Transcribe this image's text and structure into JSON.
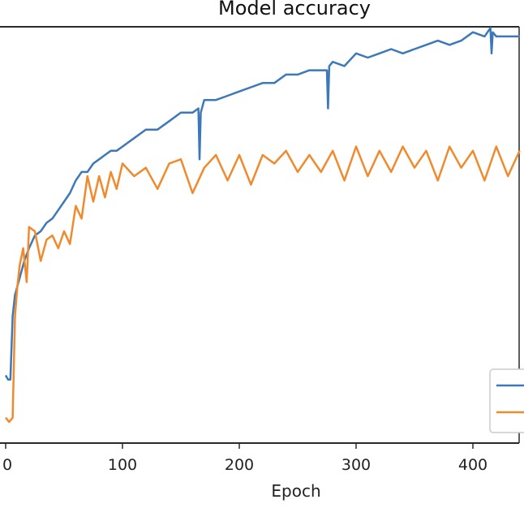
{
  "chart_data": {
    "type": "line",
    "title": "Model accuracy",
    "xlabel": "Epoch",
    "ylabel": "",
    "xlim": [
      -5,
      440
    ],
    "ylim": [
      0.0,
      1.0
    ],
    "x_ticks": [
      0,
      100,
      200,
      300,
      400
    ],
    "x_tick_labels": [
      "0",
      "100",
      "200",
      "300",
      "400"
    ],
    "legend_position": "lower-right",
    "grid": false,
    "series": [
      {
        "color": "#3d78b8",
        "x": [
          0,
          2,
          4,
          6,
          8,
          10,
          13,
          16,
          20,
          25,
          30,
          35,
          40,
          45,
          50,
          55,
          60,
          65,
          70,
          75,
          80,
          85,
          90,
          95,
          100,
          110,
          120,
          130,
          140,
          150,
          160,
          165,
          166,
          167,
          170,
          180,
          190,
          200,
          210,
          220,
          230,
          240,
          250,
          260,
          270,
          275,
          276,
          277,
          280,
          290,
          300,
          310,
          320,
          330,
          340,
          350,
          360,
          370,
          380,
          390,
          400,
          410,
          415,
          416,
          417,
          420,
          430,
          440
        ],
        "y": [
          0.16,
          0.15,
          0.15,
          0.3,
          0.35,
          0.37,
          0.4,
          0.43,
          0.46,
          0.49,
          0.5,
          0.52,
          0.53,
          0.55,
          0.57,
          0.59,
          0.62,
          0.64,
          0.64,
          0.66,
          0.67,
          0.68,
          0.69,
          0.69,
          0.7,
          0.72,
          0.74,
          0.74,
          0.76,
          0.78,
          0.78,
          0.79,
          0.67,
          0.78,
          0.81,
          0.81,
          0.82,
          0.83,
          0.84,
          0.85,
          0.85,
          0.87,
          0.87,
          0.88,
          0.88,
          0.88,
          0.79,
          0.89,
          0.9,
          0.89,
          0.92,
          0.91,
          0.92,
          0.93,
          0.92,
          0.93,
          0.94,
          0.95,
          0.94,
          0.95,
          0.97,
          0.96,
          0.98,
          0.92,
          0.97,
          0.96,
          0.96,
          0.96
        ]
      },
      {
        "color": "#f08a2c",
        "x": [
          0,
          3,
          6,
          8,
          10,
          12,
          15,
          18,
          20,
          25,
          30,
          35,
          40,
          45,
          50,
          55,
          60,
          65,
          70,
          75,
          80,
          85,
          90,
          95,
          100,
          110,
          120,
          130,
          140,
          150,
          160,
          170,
          180,
          190,
          200,
          210,
          220,
          230,
          240,
          250,
          260,
          270,
          280,
          290,
          300,
          310,
          320,
          330,
          340,
          350,
          360,
          370,
          380,
          390,
          400,
          410,
          420,
          430,
          440
        ],
        "y": [
          0.06,
          0.05,
          0.06,
          0.3,
          0.37,
          0.42,
          0.46,
          0.38,
          0.51,
          0.5,
          0.43,
          0.48,
          0.49,
          0.46,
          0.5,
          0.47,
          0.56,
          0.53,
          0.63,
          0.57,
          0.63,
          0.58,
          0.64,
          0.6,
          0.66,
          0.63,
          0.65,
          0.6,
          0.66,
          0.67,
          0.59,
          0.65,
          0.68,
          0.62,
          0.68,
          0.61,
          0.68,
          0.66,
          0.69,
          0.64,
          0.68,
          0.64,
          0.69,
          0.62,
          0.7,
          0.63,
          0.69,
          0.64,
          0.7,
          0.65,
          0.69,
          0.62,
          0.7,
          0.65,
          0.69,
          0.62,
          0.7,
          0.63,
          0.69
        ]
      }
    ]
  }
}
